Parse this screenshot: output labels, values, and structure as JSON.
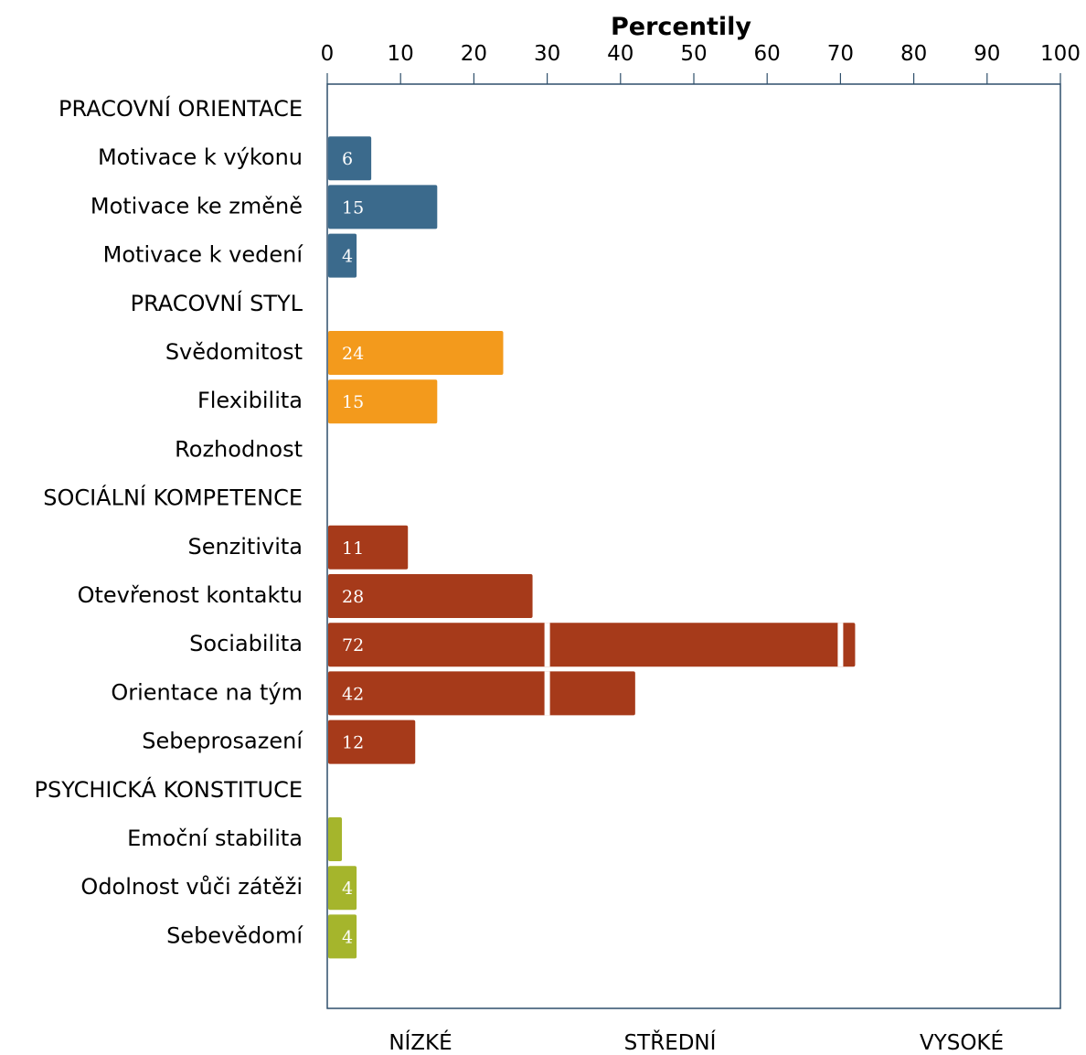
{
  "chart_data": {
    "type": "bar",
    "orientation": "horizontal",
    "title": "",
    "xlabel": "Percentily",
    "xlabel_position": "top",
    "xlim": [
      0,
      100
    ],
    "x_ticks": [
      "0",
      "10",
      "20",
      "30",
      "40",
      "50",
      "60",
      "70",
      "80",
      "90",
      "100"
    ],
    "grid": false,
    "bands": [
      {
        "label": "NÍZKÉ",
        "range": [
          0,
          30
        ]
      },
      {
        "label": "STŘEDNÍ",
        "range": [
          30,
          70
        ]
      },
      {
        "label": "VYSOKÉ",
        "range": [
          70,
          100
        ]
      }
    ],
    "rows": [
      {
        "label": "PRACOVNÍ ORIENTACE",
        "is_group": true
      },
      {
        "label": "Motivace k výkonu",
        "value": 6,
        "value_label": "6",
        "color": "#3b6a8c"
      },
      {
        "label": "Motivace ke změně",
        "value": 15,
        "value_label": "15",
        "color": "#3b6a8c"
      },
      {
        "label": "Motivace k vedení",
        "value": 4,
        "value_label": "4",
        "color": "#3b6a8c"
      },
      {
        "label": "PRACOVNÍ STYL",
        "is_group": true
      },
      {
        "label": "Svědomitost",
        "value": 24,
        "value_label": "24",
        "color": "#f39a1c"
      },
      {
        "label": "Flexibilita",
        "value": 15,
        "value_label": "15",
        "color": "#f39a1c"
      },
      {
        "label": "Rozhodnost",
        "value": 0,
        "value_label": "",
        "color": "#f39a1c"
      },
      {
        "label": "SOCIÁLNÍ KOMPETENCE",
        "is_group": true
      },
      {
        "label": "Senzitivita",
        "value": 11,
        "value_label": "11",
        "color": "#a63a1a"
      },
      {
        "label": "Otevřenost kontaktu",
        "value": 28,
        "value_label": "28",
        "color": "#a63a1a"
      },
      {
        "label": "Sociabilita",
        "value": 72,
        "value_label": "72",
        "color": "#a63a1a"
      },
      {
        "label": "Orientace na tým",
        "value": 42,
        "value_label": "42",
        "color": "#a63a1a"
      },
      {
        "label": "Sebeprosazení",
        "value": 12,
        "value_label": "12",
        "color": "#a63a1a"
      },
      {
        "label": "PSYCHICKÁ KONSTITUCE",
        "is_group": true
      },
      {
        "label": "Emoční stabilita",
        "value": 2,
        "value_label": "",
        "color": "#a5b52c"
      },
      {
        "label": "Odolnost vůči zátěži",
        "value": 4,
        "value_label": "4",
        "color": "#a5b52c"
      },
      {
        "label": "Sebevědomí",
        "value": 4,
        "value_label": "4",
        "color": "#a5b52c"
      }
    ]
  }
}
